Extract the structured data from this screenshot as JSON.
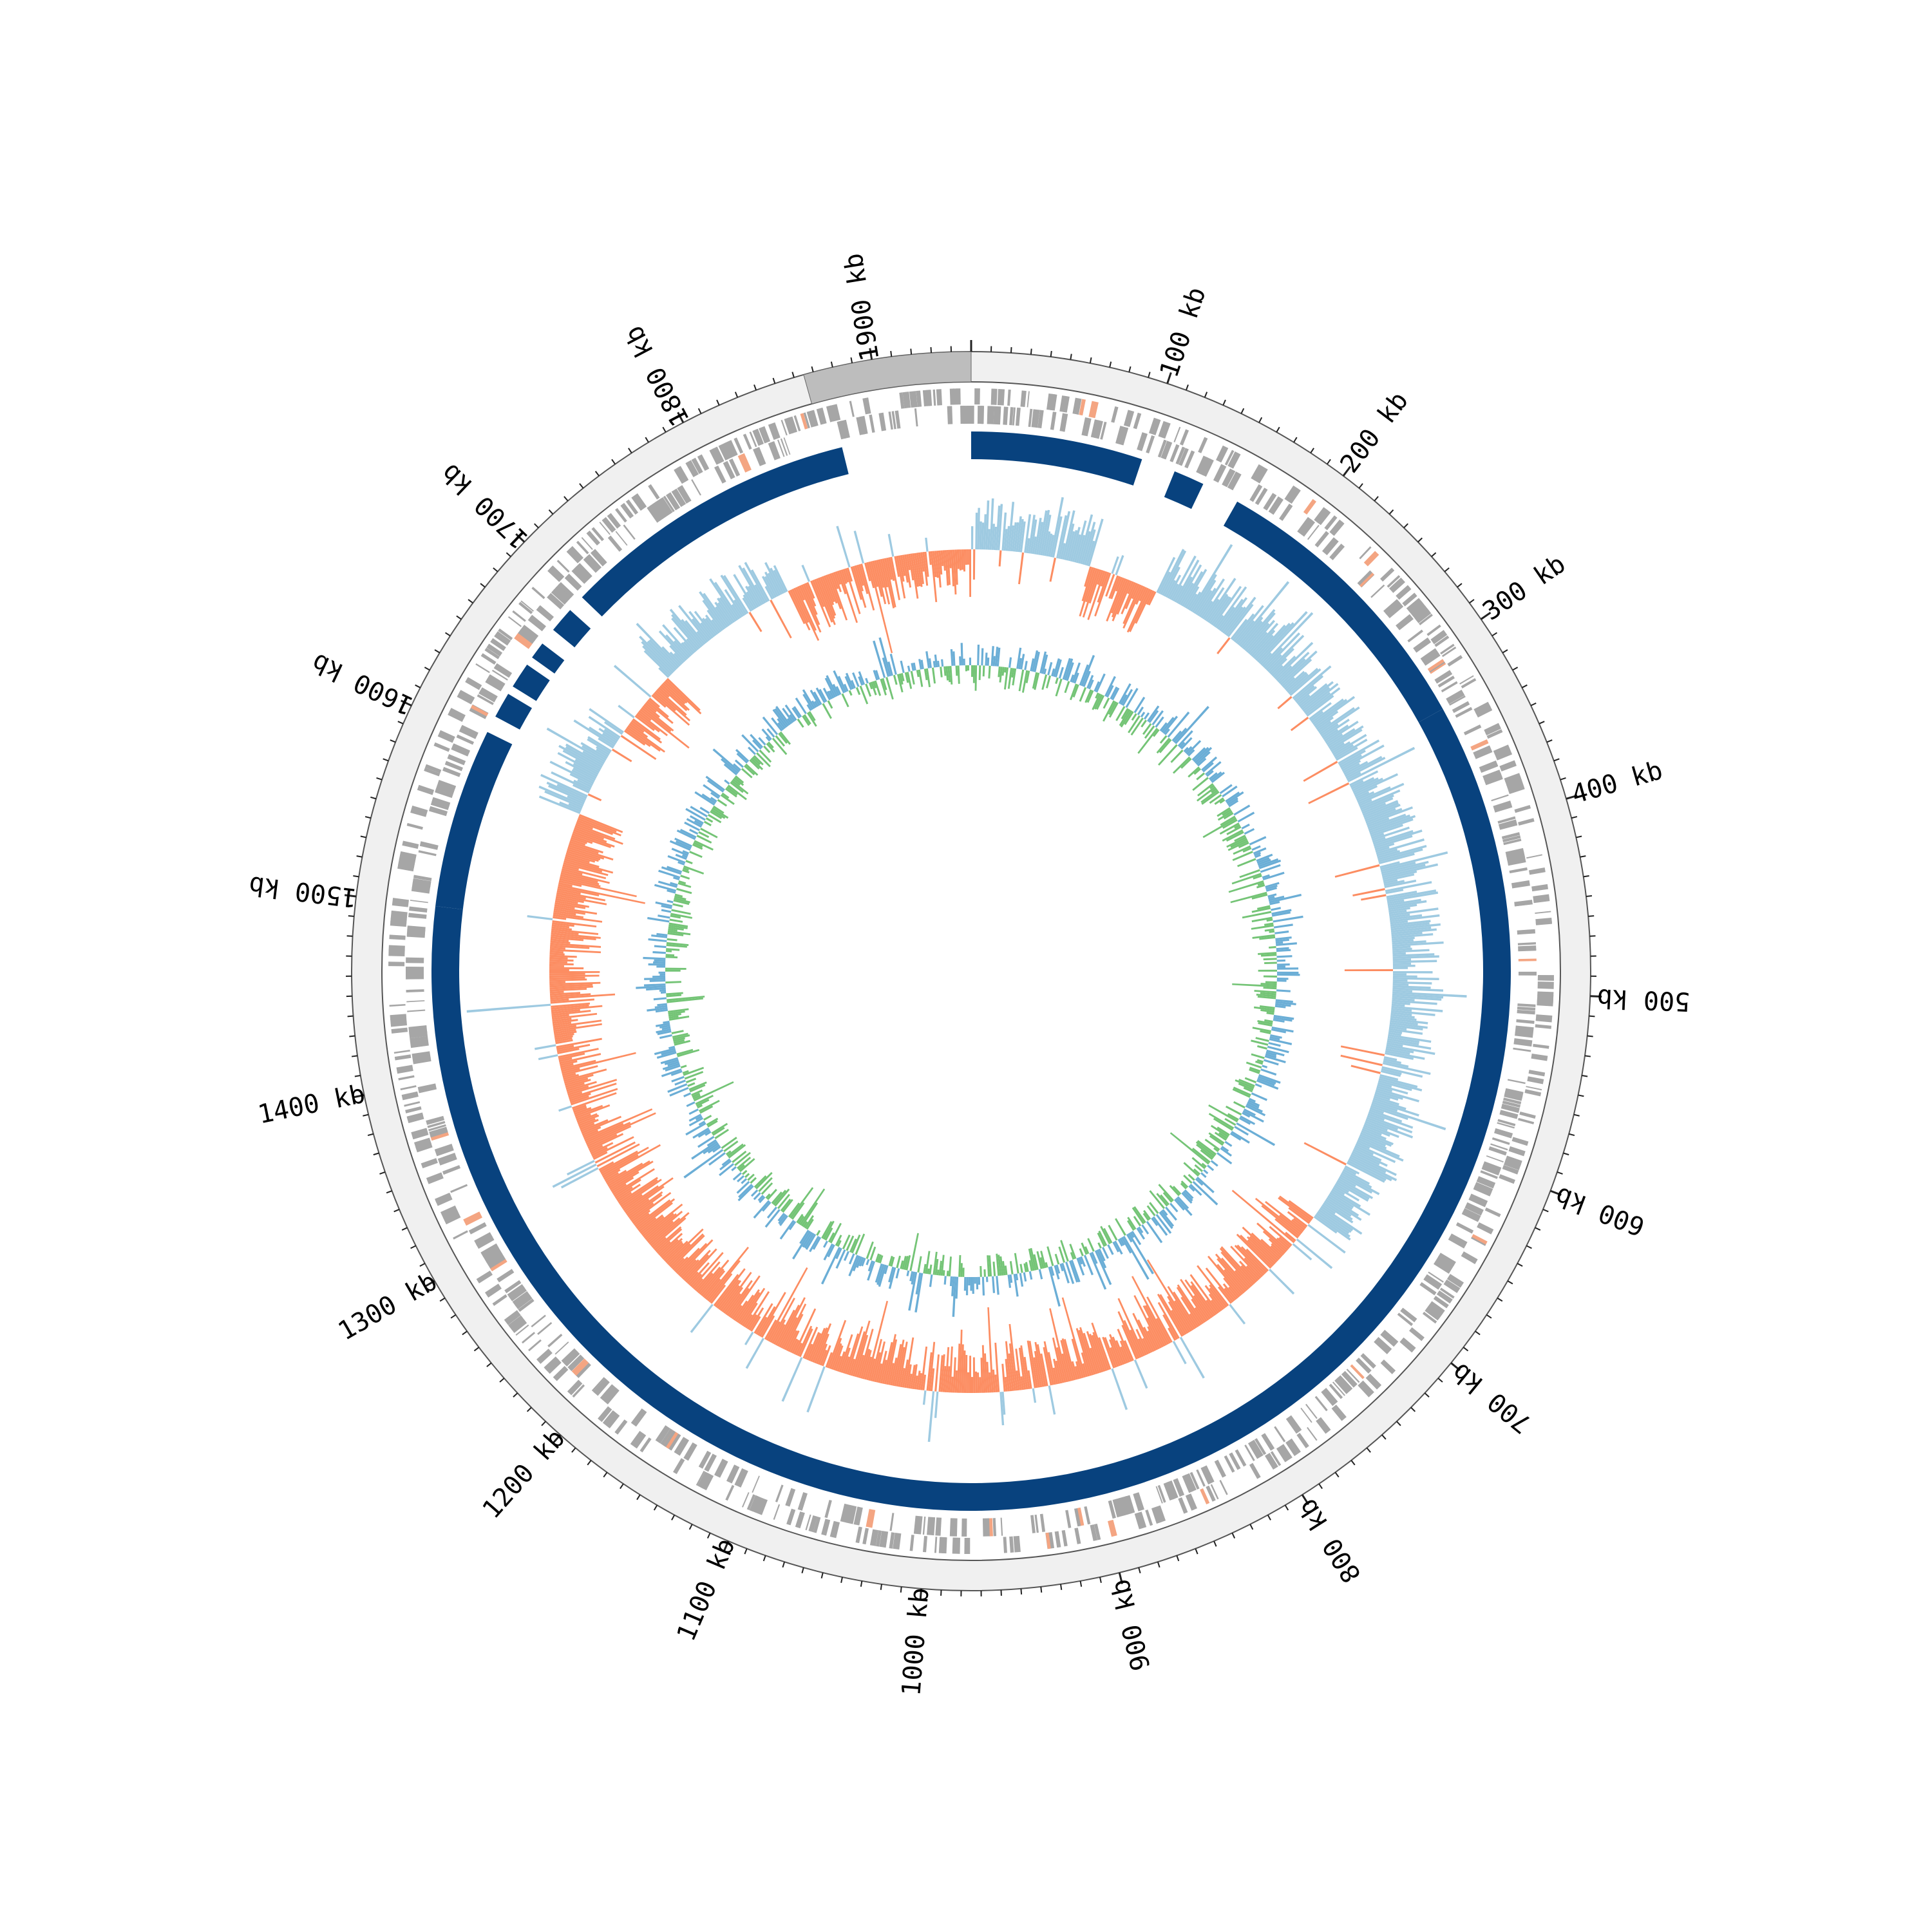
{
  "genome": {
    "length_kb": 1950,
    "ticks_kb": [
      100,
      200,
      300,
      400,
      500,
      600,
      700,
      800,
      900,
      1000,
      1100,
      1200,
      1300,
      1400,
      1500,
      1600,
      1700,
      1800,
      1900
    ],
    "tick_labels": [
      "100 kb",
      "200 kb",
      "300 kb",
      "400 kb",
      "500 kb",
      "600 kb",
      "700 kb",
      "800 kb",
      "900 kb",
      "1000 kb",
      "1100 kb",
      "1200 kb",
      "1300 kb",
      "1400 kb",
      "1500 kb",
      "1600 kb",
      "1700 kb",
      "1800 kb",
      "1900 kb"
    ],
    "highlight_range_kb": [
      1865,
      1950
    ]
  },
  "colors": {
    "outer_band": "#f0f0f0",
    "highlight": "#bdbdbd",
    "features": "#a6a6a6",
    "feature_accent": "#f4a582",
    "contig": "#08427e",
    "skew_positive": "#9ecae1",
    "skew_negative": "#fc8d62",
    "gc_positive": "#6baed6",
    "gc_negative": "#74c476"
  },
  "tracks": {
    "contig_segments_kb": [
      [
        0,
        100
      ],
      [
        120,
        138
      ],
      [
        160,
        330
      ],
      [
        330,
        1500
      ],
      [
        1500,
        1605
      ],
      [
        1615,
        1630
      ],
      [
        1635,
        1650
      ],
      [
        1655,
        1665
      ],
      [
        1675,
        1690
      ],
      [
        1700,
        1875
      ]
    ],
    "gc_skew_sign_regions_kb": [
      [
        0,
        88,
        1
      ],
      [
        88,
        140,
        -1
      ],
      [
        140,
        600,
        1
      ],
      [
        600,
        680,
        1
      ],
      [
        680,
        1350,
        -1
      ],
      [
        1350,
        1660,
        -1
      ],
      [
        1580,
        1650,
        1
      ],
      [
        1660,
        1700,
        -1
      ],
      [
        1700,
        1810,
        1
      ],
      [
        1810,
        1950,
        -1
      ]
    ]
  }
}
